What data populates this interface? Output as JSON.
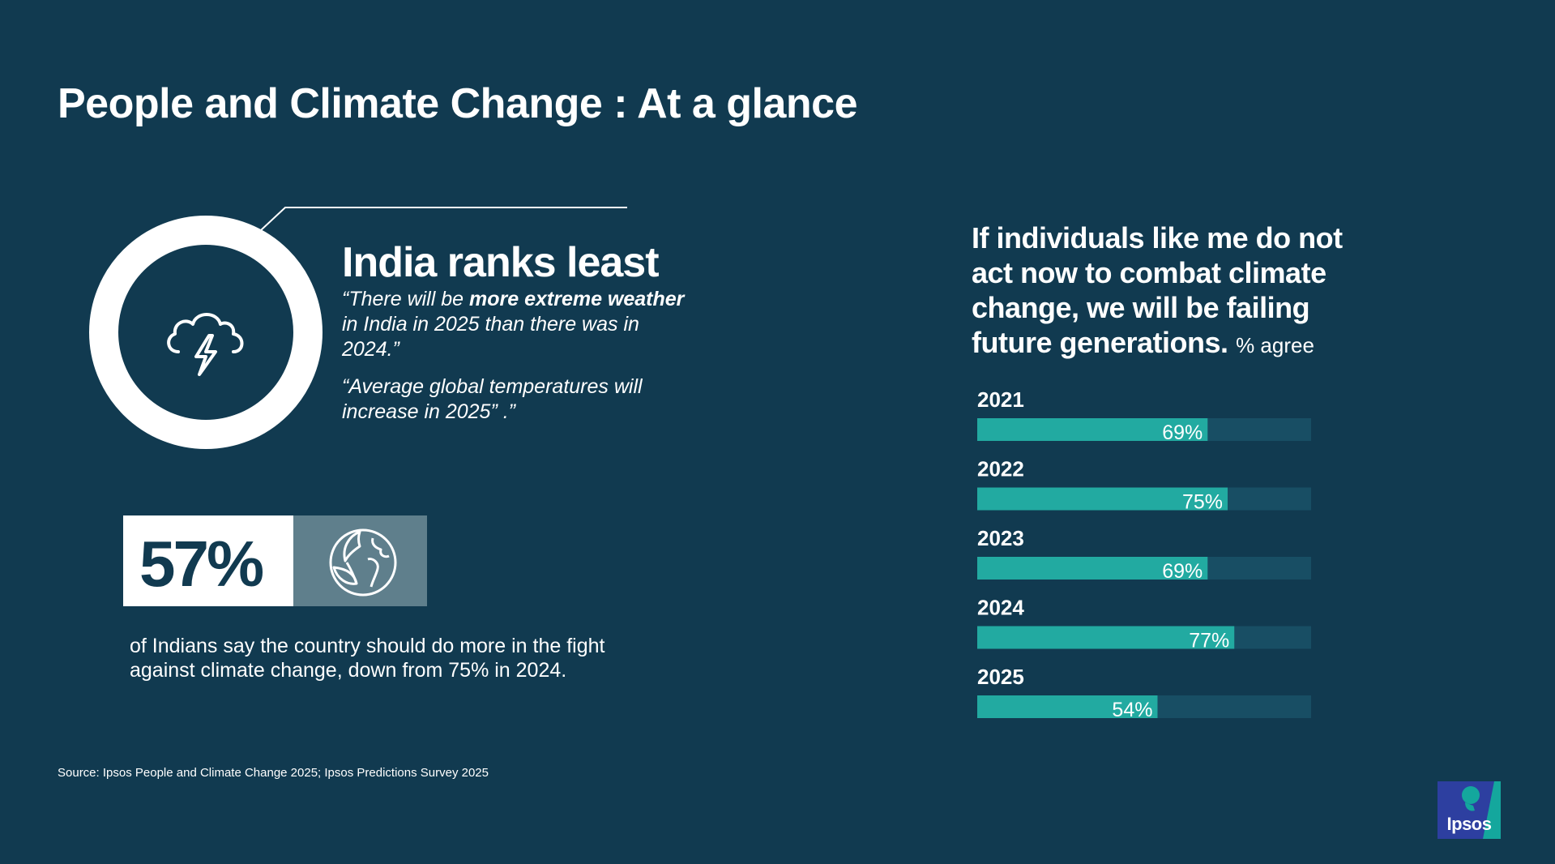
{
  "title": "People and Climate Change : At a glance",
  "rank": {
    "heading": "India ranks least",
    "quote1": {
      "open": "“There will be ",
      "bold": "more extreme weather",
      "rest": " in India in 2025 than there was in 2024.”"
    },
    "quote2": "“Average global temperatures will increase in 2025” .”",
    "icon": "storm-cloud-icon"
  },
  "stat": {
    "value": "57%",
    "icon": "globe-leaf-icon",
    "description": "of Indians say the country should do more in the fight against climate change, down from 75% in 2024."
  },
  "chart_data": {
    "type": "bar",
    "orientation": "horizontal",
    "title": "If individuals like me do not act now to combat climate change, we will be failing future generations.",
    "unit": "% agree",
    "categories": [
      "2021",
      "2022",
      "2023",
      "2024",
      "2025"
    ],
    "values": [
      69,
      75,
      69,
      77,
      54
    ],
    "value_labels": [
      "69%",
      "75%",
      "69%",
      "77%",
      "54%"
    ],
    "xlim": [
      0,
      100
    ],
    "grid": false,
    "colors": {
      "bar": "#22aaa1",
      "track": "#184e64",
      "label": "#ffffff"
    }
  },
  "source": "Source:  Ipsos People and Climate Change 2025; Ipsos Predictions Survey 2025",
  "logo": {
    "text": "Ipsos",
    "colors": {
      "primary": "#2d3fa0",
      "accent": "#14a79d"
    }
  },
  "colors": {
    "background": "#113a50",
    "box_muted": "#5f7f8c"
  }
}
